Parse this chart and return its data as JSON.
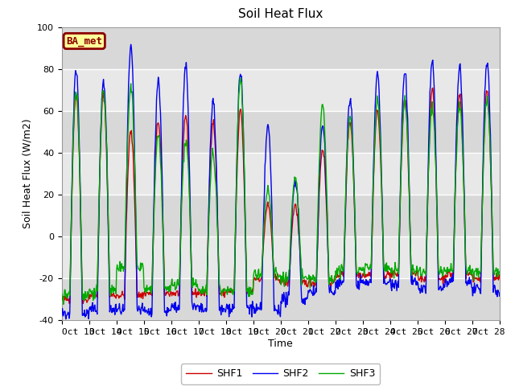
{
  "title": "Soil Heat Flux",
  "ylabel": "Soil Heat Flux (W/m2)",
  "xlabel": "Time",
  "ylim": [
    -40,
    100
  ],
  "yticks": [
    -40,
    -20,
    0,
    20,
    40,
    60,
    80,
    100
  ],
  "xtick_labels": [
    "Oct 13",
    "Oct 14",
    "Oct 15",
    "Oct 16",
    "Oct 17",
    "Oct 18",
    "Oct 19",
    "Oct 20",
    "Oct 21",
    "Oct 22",
    "Oct 23",
    "Oct 24",
    "Oct 25",
    "Oct 26",
    "Oct 27",
    "Oct 28"
  ],
  "shf1_color": "#cc0000",
  "shf2_color": "#0000ee",
  "shf3_color": "#00aa00",
  "legend_labels": [
    "SHF1",
    "SHF2",
    "SHF3"
  ],
  "annotation_text": "BA_met",
  "annotation_bg": "#ffff99",
  "annotation_border": "#8b0000",
  "plot_bg_color": "#e8e8e8",
  "fig_bg_color": "#ffffff",
  "band_color": "#d8d8d8",
  "white_band": "#f0f0f0",
  "title_fontsize": 11,
  "label_fontsize": 9,
  "tick_fontsize": 8
}
